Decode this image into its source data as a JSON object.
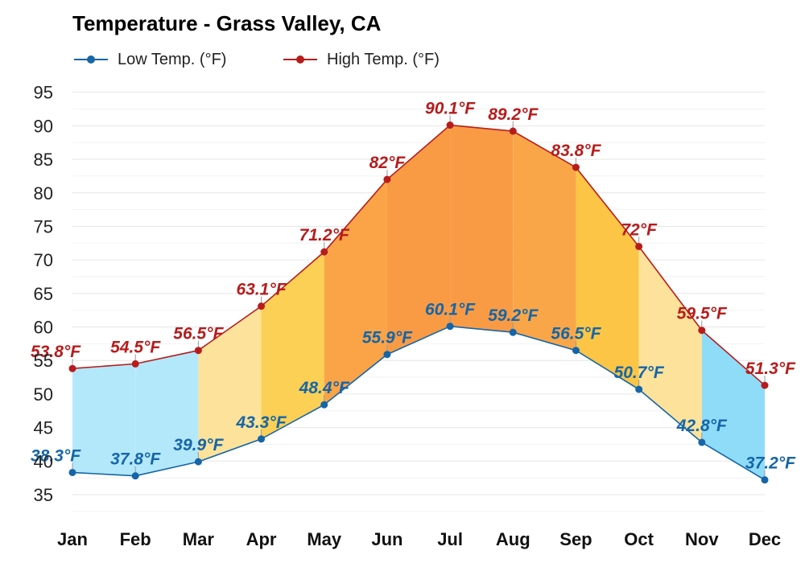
{
  "chart_data": {
    "type": "area",
    "title": "Temperature - Grass Valley, CA",
    "xlabel": "",
    "ylabel": "",
    "categories": [
      "Jan",
      "Feb",
      "Mar",
      "Apr",
      "May",
      "Jun",
      "Jul",
      "Aug",
      "Sep",
      "Oct",
      "Nov",
      "Dec"
    ],
    "series": [
      {
        "name": "Low Temp. (°F)",
        "color": "#1565a8",
        "values": [
          38.3,
          37.8,
          39.9,
          43.3,
          48.4,
          55.9,
          60.1,
          59.2,
          56.5,
          50.7,
          42.8,
          37.2
        ],
        "labels": [
          "38.3°F",
          "37.8°F",
          "39.9°F",
          "43.3°F",
          "48.4°F",
          "55.9°F",
          "60.1°F",
          "59.2°F",
          "56.5°F",
          "50.7°F",
          "42.8°F",
          "37.2°F"
        ]
      },
      {
        "name": "High Temp. (°F)",
        "color": "#b71c1c",
        "values": [
          53.8,
          54.5,
          56.5,
          63.1,
          71.2,
          82,
          90.1,
          89.2,
          83.8,
          72,
          59.5,
          51.3
        ],
        "labels": [
          "53.8°F",
          "54.5°F",
          "56.5°F",
          "63.1°F",
          "71.2°F",
          "82°F",
          "90.1°F",
          "89.2°F",
          "83.8°F",
          "72°F",
          "59.5°F",
          "51.3°F"
        ]
      }
    ],
    "ylim": [
      32,
      97
    ],
    "yticks": [
      35,
      40,
      45,
      50,
      55,
      60,
      65,
      70,
      75,
      80,
      85,
      90,
      95
    ],
    "grid": true,
    "legend": "top-left",
    "band_colors": [
      "#b3e8fb",
      "#b3e8fb",
      "#fce29a",
      "#fbd054",
      "#faa447",
      "#f99b45",
      "#f99b45",
      "#f9a648",
      "#fcc545",
      "#fce29a",
      "#8fdcf8",
      "#8fdcf8"
    ]
  }
}
